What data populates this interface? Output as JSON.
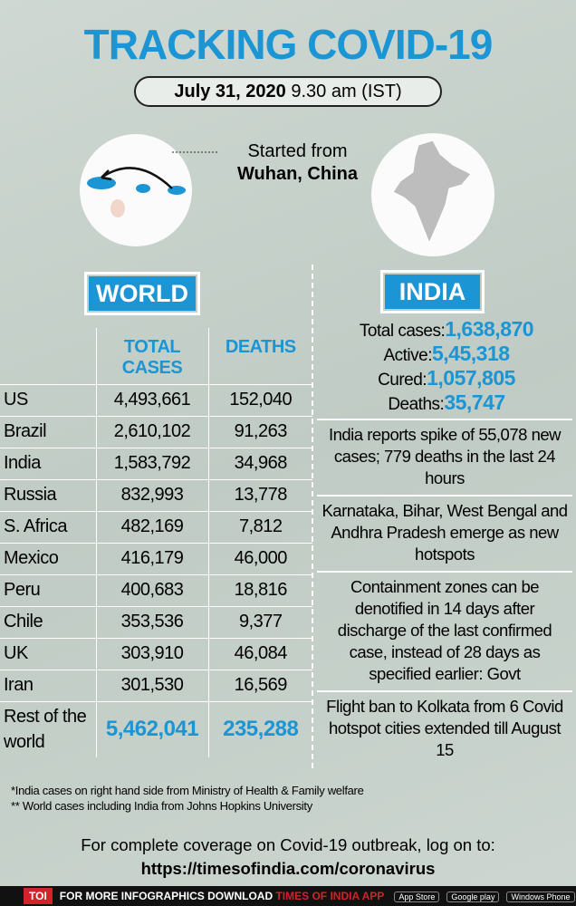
{
  "header": {
    "title": "TRACKING COVID-19",
    "date": "July 31, 2020",
    "time": "9.30 am (IST)"
  },
  "origin": {
    "label": "Started from",
    "place": "Wuhan, China"
  },
  "world": {
    "title": "WORLD",
    "columns": [
      "TOTAL CASES",
      "DEATHS"
    ],
    "rows": [
      [
        "US",
        "4,493,661",
        "152,040"
      ],
      [
        "Brazil",
        "2,610,102",
        "91,263"
      ],
      [
        "India",
        "1,583,792",
        "34,968"
      ],
      [
        "Russia",
        "832,993",
        "13,778"
      ],
      [
        "S. Africa",
        "482,169",
        "7,812"
      ],
      [
        "Mexico",
        "416,179",
        "46,000"
      ],
      [
        "Peru",
        "400,683",
        "18,816"
      ],
      [
        "Chile",
        "353,536",
        "9,377"
      ],
      [
        "UK",
        "303,910",
        "46,084"
      ],
      [
        "Iran",
        "301,530",
        "16,569"
      ],
      [
        "Rest of the world",
        "5,462,041",
        "235,288"
      ]
    ]
  },
  "india": {
    "title": "INDIA",
    "stats": [
      {
        "label": "Total cases:",
        "value": "1,638,870"
      },
      {
        "label": "Active:",
        "value": "5,45,318"
      },
      {
        "label": "Cured:",
        "value": "1,057,805"
      },
      {
        "label": "Deaths:",
        "value": "35,747"
      }
    ],
    "notes": [
      "India reports spike of 55,078 new cases; 779 deaths in the last 24 hours",
      "Karnataka, Bihar, West Bengal and Andhra Pradesh emerge as new hotspots",
      "Containment zones can be denotified in 14 days after discharge of the last confirmed case, instead of 28 days as specified earlier: Govt",
      "Flight ban to Kolkata from 6 Covid hotspot cities extended till August 15"
    ]
  },
  "footnotes": [
    "*India cases on right hand side from Ministry of Health & Family welfare",
    "** World cases including India from Johns Hopkins University"
  ],
  "footer": {
    "text": "For complete coverage on Covid-19 outbreak, log on to:",
    "url": "https://timesofindia.com/coronavirus"
  },
  "bottom_bar": {
    "logo": "TOI",
    "text": "FOR MORE INFOGRAPHICS DOWNLOAD",
    "app": "TIMES OF INDIA APP",
    "stores": [
      "App Store",
      "Google play",
      "Windows Phone"
    ]
  }
}
